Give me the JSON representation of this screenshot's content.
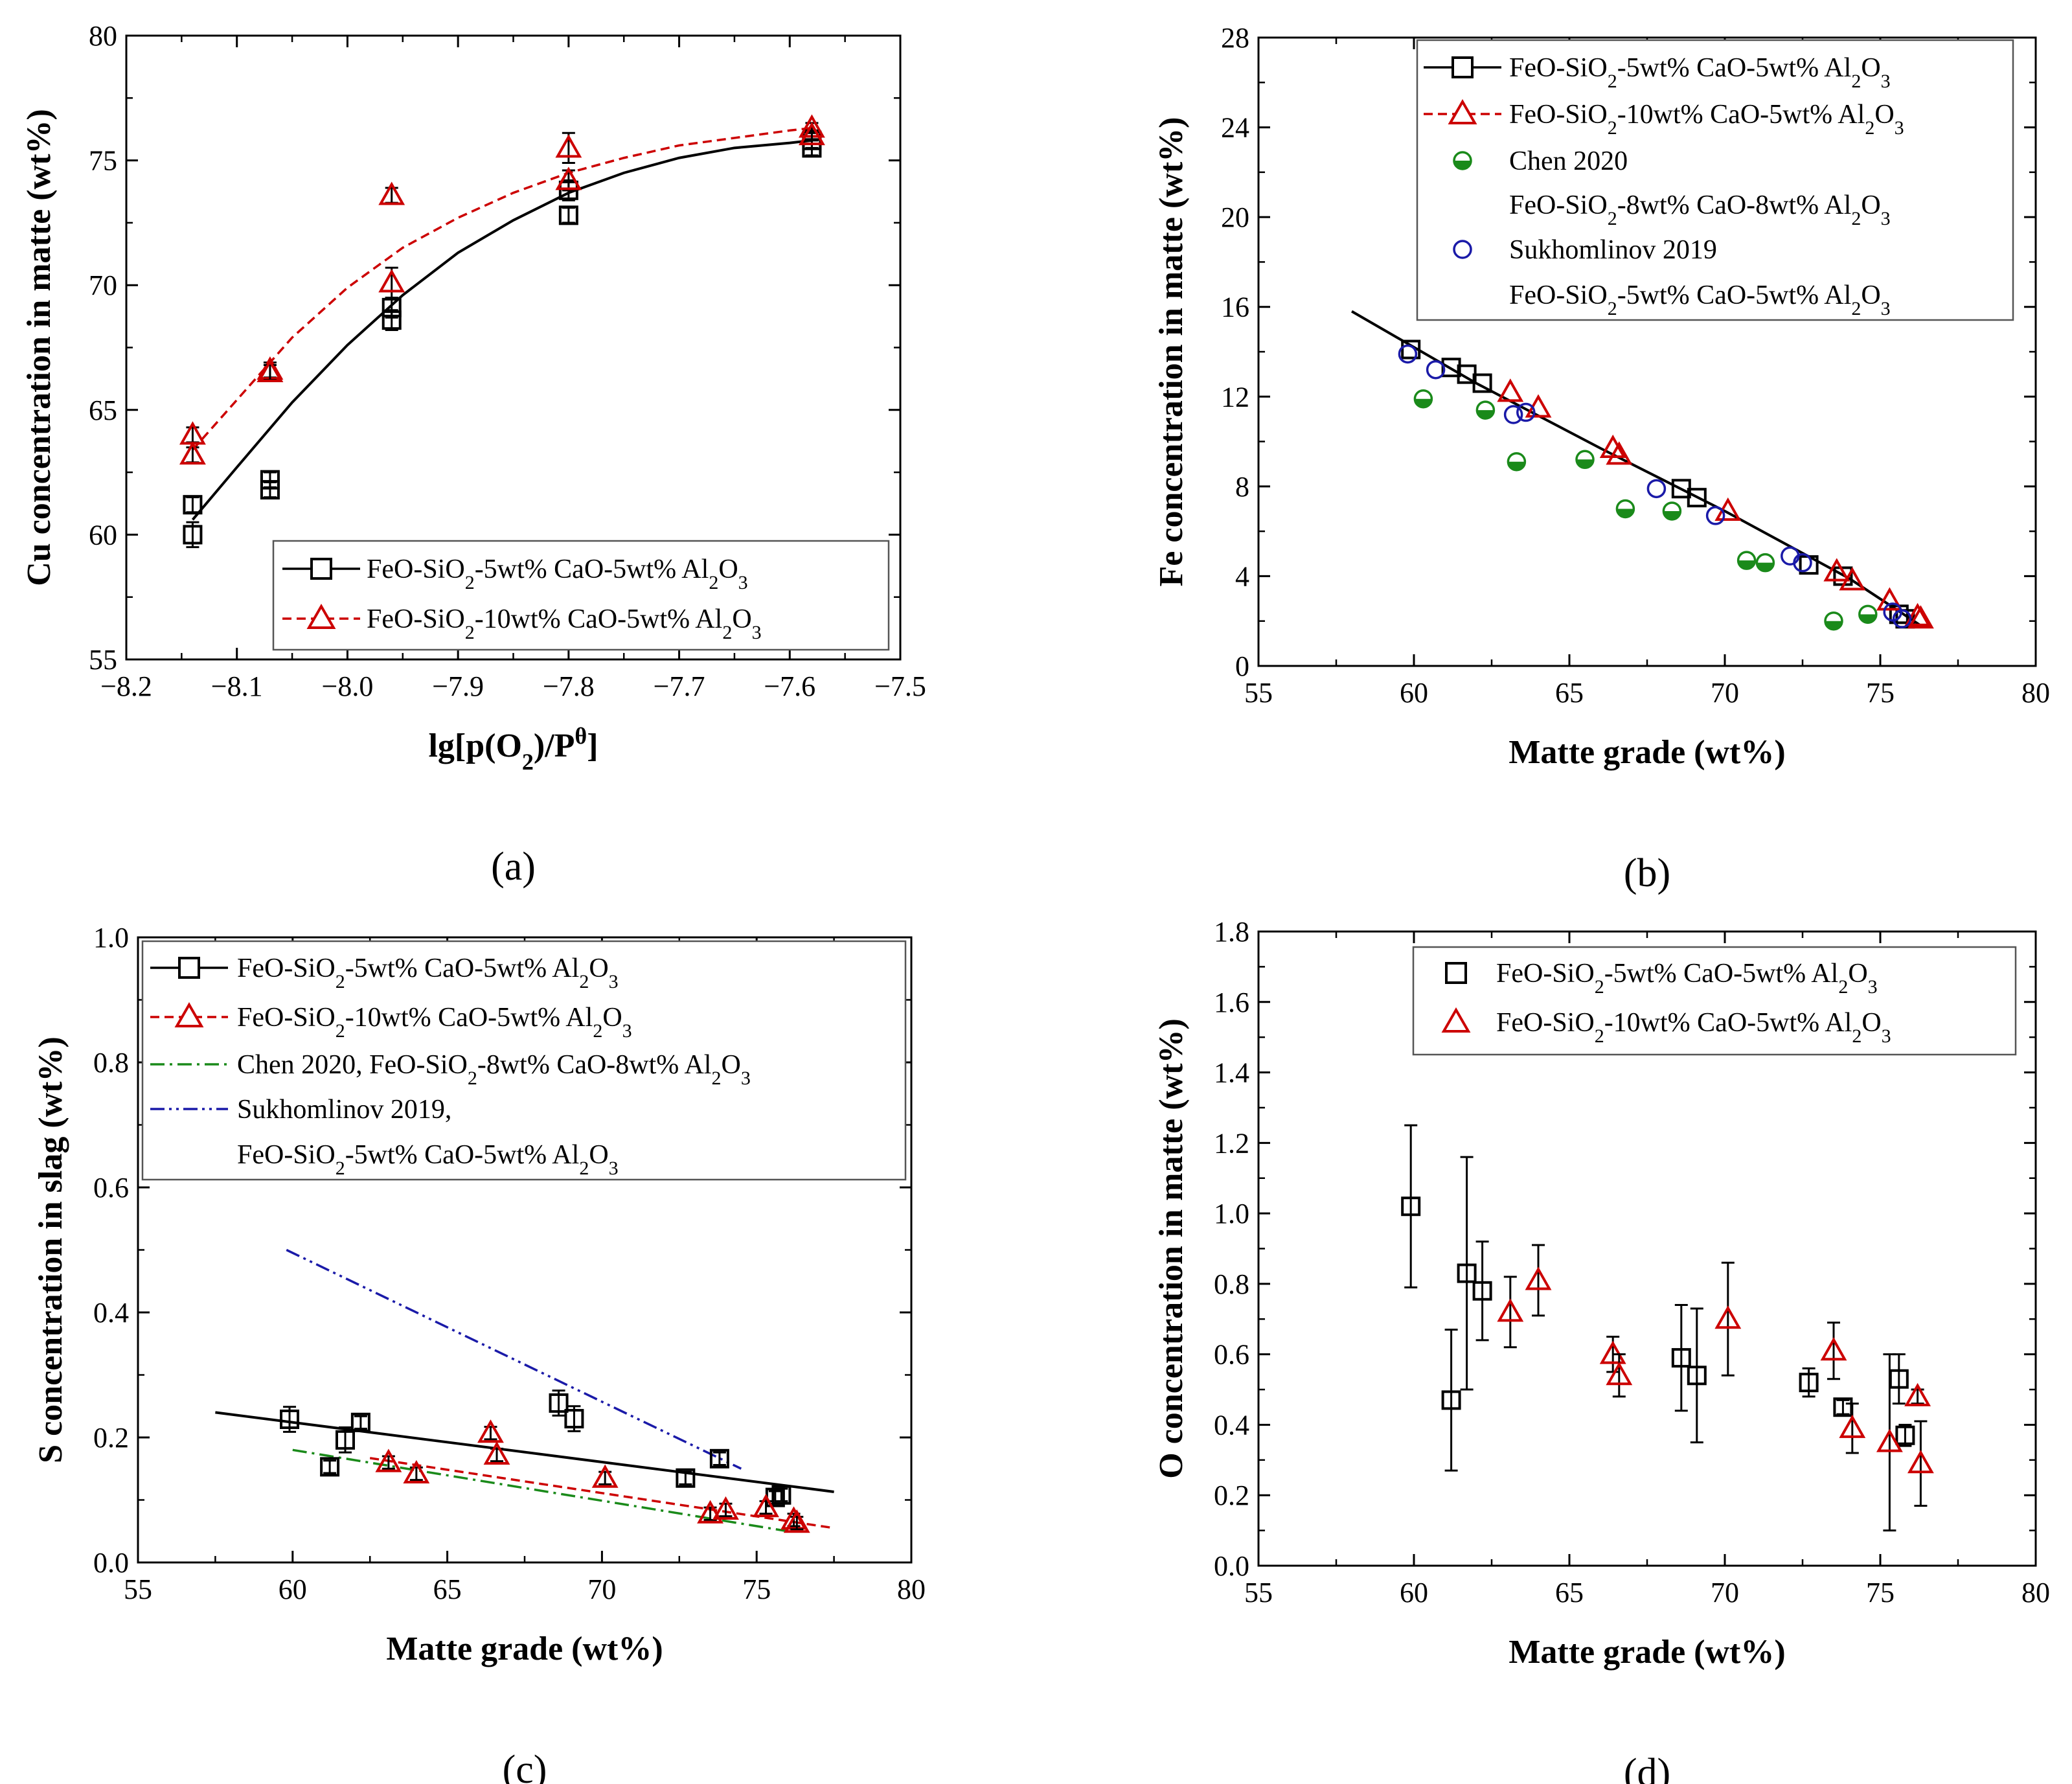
{
  "chart_data": [
    {
      "id": "a",
      "type": "scatter",
      "panel_label": "(a)",
      "xlabel": "lg[p(O2)/Pθ]",
      "ylabel": "Cu concentration in matte (wt%)",
      "xlim": [
        -8.2,
        -7.5
      ],
      "ylim": [
        55,
        80
      ],
      "xticks": [
        -8.2,
        -8.1,
        -8.0,
        -7.9,
        -7.8,
        -7.7,
        -7.6,
        -7.5
      ],
      "xtick_labels": [
        "−8.2",
        "−8.1",
        "−8.0",
        "−7.9",
        "−7.8",
        "−7.7",
        "−7.6",
        "−7.5"
      ],
      "yticks": [
        55,
        60,
        65,
        70,
        75,
        80
      ],
      "ytick_labels": [
        "55",
        "60",
        "65",
        "70",
        "75",
        "80"
      ],
      "legend_position": "bottom-right",
      "series": [
        {
          "name": "FeO-SiO2-5wt% CaO-5wt% Al2O3",
          "marker": "square",
          "color": "#000000",
          "points": [
            {
              "x": -8.14,
              "y": 61.2,
              "err": 0.3
            },
            {
              "x": -8.14,
              "y": 60.0,
              "err": 0.5
            },
            {
              "x": -8.07,
              "y": 62.2,
              "err": 0.3
            },
            {
              "x": -8.07,
              "y": 61.8,
              "err": 0.3
            },
            {
              "x": -7.96,
              "y": 69.1,
              "err": 0.4
            },
            {
              "x": -7.96,
              "y": 68.6,
              "err": 0.4
            },
            {
              "x": -7.8,
              "y": 73.8,
              "err": 0.4
            },
            {
              "x": -7.8,
              "y": 72.8,
              "err": 0.3
            },
            {
              "x": -7.58,
              "y": 75.8,
              "err": 0.3
            },
            {
              "x": -7.58,
              "y": 75.5,
              "err": 0.3
            }
          ]
        },
        {
          "name": "FeO-SiO2-10wt% CaO-5wt% Al2O3",
          "marker": "triangle",
          "color": "#cc0000",
          "points": [
            {
              "x": -8.14,
              "y": 64.0,
              "err": 0.3
            },
            {
              "x": -8.14,
              "y": 63.2,
              "err": 0.3
            },
            {
              "x": -8.07,
              "y": 66.6,
              "err": 0.3
            },
            {
              "x": -8.07,
              "y": 66.5,
              "err": 0.3
            },
            {
              "x": -7.96,
              "y": 73.6,
              "err": 0.3
            },
            {
              "x": -7.96,
              "y": 70.1,
              "err": 0.6
            },
            {
              "x": -7.8,
              "y": 75.5,
              "err": 0.6
            },
            {
              "x": -7.8,
              "y": 74.2,
              "err": 0.4
            },
            {
              "x": -7.58,
              "y": 76.3,
              "err": 0.2
            },
            {
              "x": -7.58,
              "y": 76.0,
              "err": 0.2
            }
          ]
        }
      ],
      "fits": [
        {
          "series": "FeO-SiO2-5wt% CaO-5wt% Al2O3",
          "style": "solid",
          "color": "#000000",
          "x": [
            -8.14,
            -8.1,
            -8.05,
            -8.0,
            -7.95,
            -7.9,
            -7.85,
            -7.8,
            -7.75,
            -7.7,
            -7.65,
            -7.6,
            -7.58
          ],
          "y": [
            60.6,
            62.7,
            65.3,
            67.6,
            69.6,
            71.3,
            72.6,
            73.7,
            74.5,
            75.1,
            75.5,
            75.7,
            75.8
          ]
        },
        {
          "series": "FeO-SiO2-10wt% CaO-5wt% Al2O3",
          "style": "dashed",
          "color": "#cc0000",
          "x": [
            -8.14,
            -8.1,
            -8.05,
            -8.0,
            -7.95,
            -7.9,
            -7.85,
            -7.8,
            -7.75,
            -7.7,
            -7.65,
            -7.6,
            -7.58
          ],
          "y": [
            63.4,
            65.4,
            67.9,
            69.9,
            71.5,
            72.7,
            73.7,
            74.5,
            75.1,
            75.6,
            75.9,
            76.2,
            76.3
          ]
        }
      ]
    },
    {
      "id": "b",
      "type": "scatter",
      "panel_label": "(b)",
      "xlabel": "Matte grade (wt%)",
      "ylabel": "Fe concentration in matte (wt%)",
      "xlim": [
        55,
        80
      ],
      "ylim": [
        0,
        28
      ],
      "xticks": [
        55,
        60,
        65,
        70,
        75,
        80
      ],
      "xtick_labels": [
        "55",
        "60",
        "65",
        "70",
        "75",
        "80"
      ],
      "yticks": [
        0,
        4,
        8,
        12,
        16,
        20,
        24,
        28
      ],
      "ytick_labels": [
        "0",
        "4",
        "8",
        "12",
        "16",
        "20",
        "24",
        "28"
      ],
      "legend_position": "top-right",
      "series": [
        {
          "name": "FeO-SiO2-5wt% CaO-5wt% Al2O3",
          "marker": "square",
          "color": "#000000",
          "points": [
            {
              "x": 59.9,
              "y": 14.1
            },
            {
              "x": 61.2,
              "y": 13.3
            },
            {
              "x": 61.7,
              "y": 13.0
            },
            {
              "x": 62.2,
              "y": 12.6
            },
            {
              "x": 68.6,
              "y": 7.9
            },
            {
              "x": 69.1,
              "y": 7.5
            },
            {
              "x": 72.7,
              "y": 4.5
            },
            {
              "x": 73.8,
              "y": 4.0
            },
            {
              "x": 75.6,
              "y": 2.3
            },
            {
              "x": 75.8,
              "y": 2.1
            }
          ]
        },
        {
          "name": "FeO-SiO2-10wt% CaO-5wt% Al2O3",
          "marker": "triangle",
          "color": "#cc0000",
          "points": [
            {
              "x": 63.1,
              "y": 12.2
            },
            {
              "x": 64.0,
              "y": 11.5
            },
            {
              "x": 66.4,
              "y": 9.7
            },
            {
              "x": 66.6,
              "y": 9.4
            },
            {
              "x": 70.1,
              "y": 6.9
            },
            {
              "x": 73.6,
              "y": 4.2
            },
            {
              "x": 74.1,
              "y": 3.8
            },
            {
              "x": 75.3,
              "y": 2.9
            },
            {
              "x": 76.2,
              "y": 2.2
            },
            {
              "x": 76.3,
              "y": 2.1
            }
          ]
        },
        {
          "name": "Chen 2020",
          "name_line2": "FeO-SiO2-8wt% CaO-8wt% Al2O3",
          "marker": "half-filled-circle",
          "color": "#1a8a1a",
          "points": [
            {
              "x": 60.3,
              "y": 11.9
            },
            {
              "x": 62.3,
              "y": 11.4
            },
            {
              "x": 63.3,
              "y": 9.1
            },
            {
              "x": 65.5,
              "y": 9.2
            },
            {
              "x": 66.8,
              "y": 7.0
            },
            {
              "x": 68.3,
              "y": 6.9
            },
            {
              "x": 70.7,
              "y": 4.7
            },
            {
              "x": 71.3,
              "y": 4.6
            },
            {
              "x": 73.5,
              "y": 2.0
            },
            {
              "x": 74.6,
              "y": 2.3
            }
          ]
        },
        {
          "name": "Sukhomlinov 2019",
          "name_line2": "FeO-SiO2-5wt% CaO-5wt% Al2O3",
          "marker": "open-circle",
          "color": "#1a1aa8",
          "points": [
            {
              "x": 59.8,
              "y": 13.9
            },
            {
              "x": 60.7,
              "y": 13.2
            },
            {
              "x": 63.2,
              "y": 11.2
            },
            {
              "x": 63.6,
              "y": 11.3
            },
            {
              "x": 67.8,
              "y": 7.9
            },
            {
              "x": 69.7,
              "y": 6.7
            },
            {
              "x": 72.1,
              "y": 4.9
            },
            {
              "x": 72.5,
              "y": 4.6
            },
            {
              "x": 75.4,
              "y": 2.4
            },
            {
              "x": 75.7,
              "y": 2.1
            }
          ]
        }
      ],
      "fits": [
        {
          "series": "FeO-SiO2-5wt% CaO-5wt% Al2O3",
          "style": "solid",
          "color": "#000000",
          "x": [
            58.0,
            62,
            66,
            70,
            74,
            76.3
          ],
          "y": [
            15.8,
            12.6,
            9.7,
            6.9,
            3.9,
            1.8
          ]
        }
      ]
    },
    {
      "id": "c",
      "type": "scatter",
      "panel_label": "(c)",
      "xlabel": "Matte grade (wt%)",
      "ylabel": "S concentration in slag (wt%)",
      "xlim": [
        55,
        80
      ],
      "ylim": [
        0.0,
        1.0
      ],
      "xticks": [
        55,
        60,
        65,
        70,
        75,
        80
      ],
      "xtick_labels": [
        "55",
        "60",
        "65",
        "70",
        "75",
        "80"
      ],
      "yticks": [
        0.0,
        0.2,
        0.4,
        0.6,
        0.8,
        1.0
      ],
      "ytick_labels": [
        "0.0",
        "0.2",
        "0.4",
        "0.6",
        "0.8",
        "1.0"
      ],
      "legend_position": "top",
      "series": [
        {
          "name": "FeO-SiO2-5wt% CaO-5wt% Al2O3",
          "marker": "square",
          "color": "#000000",
          "points": [
            {
              "x": 59.9,
              "y": 0.229,
              "err": 0.02
            },
            {
              "x": 61.2,
              "y": 0.153,
              "err": 0.01
            },
            {
              "x": 61.7,
              "y": 0.196,
              "err": 0.02
            },
            {
              "x": 62.2,
              "y": 0.224,
              "err": 0.01
            },
            {
              "x": 68.6,
              "y": 0.255,
              "err": 0.02
            },
            {
              "x": 69.1,
              "y": 0.23,
              "err": 0.02
            },
            {
              "x": 72.7,
              "y": 0.135,
              "err": 0.01
            },
            {
              "x": 73.8,
              "y": 0.166,
              "err": 0.01
            },
            {
              "x": 75.6,
              "y": 0.104,
              "err": 0.01
            },
            {
              "x": 75.8,
              "y": 0.108,
              "err": 0.01
            }
          ]
        },
        {
          "name": "FeO-SiO2-10wt% CaO-5wt% Al2O3",
          "marker": "triangle",
          "color": "#cc0000",
          "points": [
            {
              "x": 63.1,
              "y": 0.16,
              "err": 0.01
            },
            {
              "x": 64.0,
              "y": 0.142,
              "err": 0.01
            },
            {
              "x": 66.4,
              "y": 0.207,
              "err": 0.01
            },
            {
              "x": 66.6,
              "y": 0.172,
              "err": 0.01
            },
            {
              "x": 70.1,
              "y": 0.135,
              "err": 0.01
            },
            {
              "x": 73.5,
              "y": 0.078,
              "err": 0.01
            },
            {
              "x": 74.0,
              "y": 0.084,
              "err": 0.01
            },
            {
              "x": 75.3,
              "y": 0.088,
              "err": 0.01
            },
            {
              "x": 76.2,
              "y": 0.068,
              "err": 0.01
            },
            {
              "x": 76.3,
              "y": 0.063,
              "err": 0.01
            }
          ]
        }
      ],
      "fits": [
        {
          "series": "FeO-SiO2-5wt% CaO-5wt% Al2O3",
          "style": "solid",
          "color": "#000000",
          "x": [
            57.5,
            77.5
          ],
          "y": [
            0.24,
            0.113
          ]
        },
        {
          "series": "FeO-SiO2-10wt% CaO-5wt% Al2O3",
          "style": "dashed",
          "color": "#cc0000",
          "x": [
            62.5,
            77.5
          ],
          "y": [
            0.167,
            0.055
          ]
        },
        {
          "series": "Chen 2020, FeO-SiO2-8wt% CaO-8wt% Al2O3",
          "style": "dash-dot",
          "color": "#1a8a1a",
          "x": [
            60.0,
            76.0
          ],
          "y": [
            0.18,
            0.05
          ]
        },
        {
          "series": "Sukhomlinov 2019, FeO-SiO2-5wt% CaO-5wt% Al2O3",
          "style": "dash-dot-dot",
          "color": "#1a1aa8",
          "x": [
            59.8,
            74.5
          ],
          "y": [
            0.5,
            0.15
          ]
        }
      ],
      "legend_entries": [
        {
          "label": "FeO-SiO2-5wt% CaO-5wt% Al2O3",
          "style": "solid-square",
          "color": "#000000"
        },
        {
          "label": "FeO-SiO2-10wt% CaO-5wt% Al2O3",
          "style": "dashed-triangle",
          "color": "#cc0000"
        },
        {
          "label": "Chen 2020, FeO-SiO2-8wt% CaO-8wt% Al2O3",
          "style": "dash-dot",
          "color": "#1a8a1a"
        },
        {
          "label": "Sukhomlinov 2019,",
          "label_line2": "FeO-SiO2-5wt% CaO-5wt% Al2O3",
          "style": "dash-dot-dot",
          "color": "#1a1aa8"
        }
      ]
    },
    {
      "id": "d",
      "type": "scatter",
      "panel_label": "(d)",
      "xlabel": "Matte grade (wt%)",
      "ylabel": "O concentration in matte (wt%)",
      "xlim": [
        55,
        80
      ],
      "ylim": [
        0.0,
        1.8
      ],
      "xticks": [
        55,
        60,
        65,
        70,
        75,
        80
      ],
      "xtick_labels": [
        "55",
        "60",
        "65",
        "70",
        "75",
        "80"
      ],
      "yticks": [
        0.0,
        0.2,
        0.4,
        0.6,
        0.8,
        1.0,
        1.2,
        1.4,
        1.6,
        1.8
      ],
      "ytick_labels": [
        "0.0",
        "0.2",
        "0.4",
        "0.6",
        "0.8",
        "1.0",
        "1.2",
        "1.4",
        "1.6",
        "1.8"
      ],
      "legend_position": "top-right",
      "series": [
        {
          "name": "FeO-SiO2-5wt% CaO-5wt% Al2O3",
          "marker": "square",
          "color": "#000000",
          "points": [
            {
              "x": 59.9,
              "y": 1.02,
              "err": 0.23
            },
            {
              "x": 61.2,
              "y": 0.47,
              "err": 0.2
            },
            {
              "x": 61.7,
              "y": 0.83,
              "err": 0.33
            },
            {
              "x": 62.2,
              "y": 0.78,
              "err": 0.14
            },
            {
              "x": 68.6,
              "y": 0.59,
              "err": 0.15
            },
            {
              "x": 69.1,
              "y": 0.54,
              "err": 0.19
            },
            {
              "x": 72.7,
              "y": 0.52,
              "err": 0.04
            },
            {
              "x": 73.8,
              "y": 0.45,
              "err": 0.02
            },
            {
              "x": 75.6,
              "y": 0.53,
              "err": 0.07
            },
            {
              "x": 75.8,
              "y": 0.37,
              "err": 0.03
            }
          ]
        },
        {
          "name": "FeO-SiO2-10wt% CaO-5wt% Al2O3",
          "marker": "triangle",
          "color": "#cc0000",
          "points": [
            {
              "x": 63.1,
              "y": 0.72,
              "err": 0.1
            },
            {
              "x": 64.0,
              "y": 0.81,
              "err": 0.1
            },
            {
              "x": 66.4,
              "y": 0.6,
              "err": 0.05
            },
            {
              "x": 66.6,
              "y": 0.54,
              "err": 0.06
            },
            {
              "x": 70.1,
              "y": 0.7,
              "err": 0.16
            },
            {
              "x": 73.5,
              "y": 0.61,
              "err": 0.08
            },
            {
              "x": 74.1,
              "y": 0.39,
              "err": 0.07
            },
            {
              "x": 75.3,
              "y": 0.35,
              "err": 0.25
            },
            {
              "x": 76.2,
              "y": 0.48,
              "err": 0.02
            },
            {
              "x": 76.3,
              "y": 0.29,
              "err": 0.12
            }
          ]
        }
      ]
    }
  ]
}
